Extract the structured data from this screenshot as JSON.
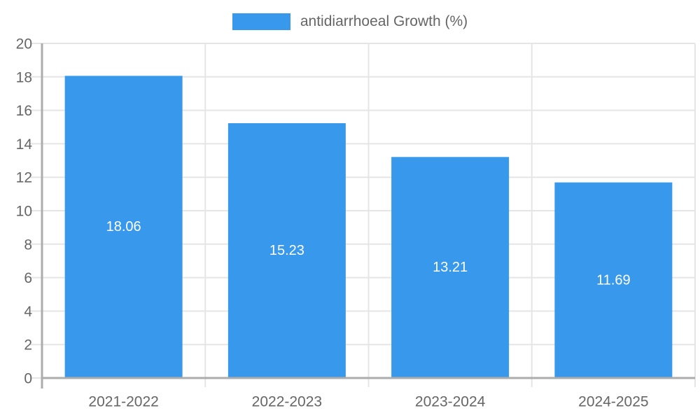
{
  "legend": {
    "label": "antidiarrhoeal Growth (%)"
  },
  "colors": {
    "bar": "#3898EC",
    "grid": "#E5E5E5",
    "axis": "#ACACAC",
    "tick_text": "#666666",
    "bar_label": "#FFFFFF",
    "background": "#FFFFFF"
  },
  "chart_data": {
    "type": "bar",
    "title": "",
    "categories": [
      "2021-2022",
      "2022-2023",
      "2023-2024",
      "2024-2025"
    ],
    "series": [
      {
        "name": "antidiarrhoeal Growth (%)",
        "values": [
          18.06,
          15.23,
          13.21,
          11.69
        ]
      }
    ],
    "bar_value_labels": [
      "18.06",
      "15.23",
      "13.21",
      "11.69"
    ],
    "xlabel": "",
    "ylabel": "",
    "ylim": [
      0,
      20
    ],
    "yticks": [
      0,
      2,
      4,
      6,
      8,
      10,
      12,
      14,
      16,
      18,
      20
    ],
    "grid": true,
    "legend_position": "top"
  }
}
